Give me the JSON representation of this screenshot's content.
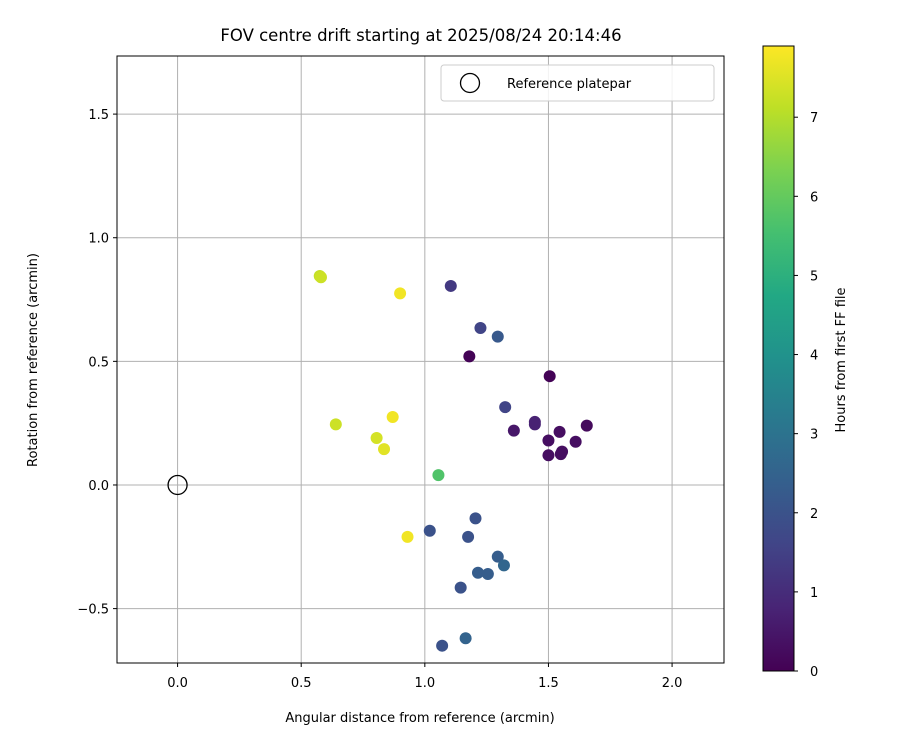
{
  "chart_data": {
    "type": "scatter",
    "title": "FOV centre drift starting at 2025/08/24 20:14:46",
    "xlabel": "Angular distance from reference (arcmin)",
    "ylabel": "Rotation from reference (arcmin)",
    "xlim": [
      -0.245,
      2.21
    ],
    "ylim": [
      -0.72,
      1.735
    ],
    "xticks": [
      0.0,
      0.5,
      1.0,
      1.5,
      2.0
    ],
    "xtick_labels": [
      "0.0",
      "0.5",
      "1.0",
      "1.5",
      "2.0"
    ],
    "yticks": [
      -0.5,
      0.0,
      0.5,
      1.0,
      1.5
    ],
    "ytick_labels": [
      "−0.5",
      "0.0",
      "0.5",
      "1.0",
      "1.5"
    ],
    "grid": true,
    "legend": {
      "location": "top-right",
      "label": "Reference platepar"
    },
    "reference_point": {
      "x": 0.0,
      "y": 0.0
    },
    "colorbar": {
      "label": "Hours from first FF file",
      "colormap": "viridis",
      "range": [
        0,
        7.9
      ],
      "ticks": [
        0,
        1,
        2,
        3,
        4,
        5,
        6,
        7
      ],
      "tick_labels": [
        "0",
        "1",
        "2",
        "3",
        "4",
        "5",
        "6",
        "7"
      ]
    },
    "points": [
      {
        "x": 1.18,
        "y": 0.52,
        "c": 0.05
      },
      {
        "x": 1.505,
        "y": 0.44,
        "c": 0.05
      },
      {
        "x": 1.655,
        "y": 0.24,
        "c": 0.2
      },
      {
        "x": 1.61,
        "y": 0.175,
        "c": 0.3
      },
      {
        "x": 1.545,
        "y": 0.215,
        "c": 0.3
      },
      {
        "x": 1.5,
        "y": 0.18,
        "c": 0.3
      },
      {
        "x": 1.555,
        "y": 0.135,
        "c": 0.3
      },
      {
        "x": 1.55,
        "y": 0.125,
        "c": 0.3
      },
      {
        "x": 1.5,
        "y": 0.12,
        "c": 0.3
      },
      {
        "x": 1.445,
        "y": 0.245,
        "c": 0.75
      },
      {
        "x": 1.445,
        "y": 0.255,
        "c": 0.75
      },
      {
        "x": 1.36,
        "y": 0.22,
        "c": 0.5
      },
      {
        "x": 1.105,
        "y": 0.805,
        "c": 1.3
      },
      {
        "x": 1.325,
        "y": 0.315,
        "c": 1.6
      },
      {
        "x": 1.225,
        "y": 0.635,
        "c": 1.6
      },
      {
        "x": 1.295,
        "y": 0.6,
        "c": 2.2
      },
      {
        "x": 1.02,
        "y": -0.185,
        "c": 2.0
      },
      {
        "x": 1.205,
        "y": -0.135,
        "c": 2.0
      },
      {
        "x": 1.175,
        "y": -0.21,
        "c": 2.0
      },
      {
        "x": 1.295,
        "y": -0.29,
        "c": 2.3
      },
      {
        "x": 1.32,
        "y": -0.325,
        "c": 2.6
      },
      {
        "x": 1.215,
        "y": -0.355,
        "c": 2.3
      },
      {
        "x": 1.255,
        "y": -0.36,
        "c": 2.3
      },
      {
        "x": 1.145,
        "y": -0.415,
        "c": 2.0
      },
      {
        "x": 1.165,
        "y": -0.62,
        "c": 2.5
      },
      {
        "x": 1.07,
        "y": -0.65,
        "c": 2.0
      },
      {
        "x": 1.055,
        "y": 0.04,
        "c": 5.7
      },
      {
        "x": 0.575,
        "y": 0.845,
        "c": 7.2
      },
      {
        "x": 0.58,
        "y": 0.84,
        "c": 7.3
      },
      {
        "x": 0.9,
        "y": 0.775,
        "c": 7.75
      },
      {
        "x": 0.64,
        "y": 0.245,
        "c": 7.3
      },
      {
        "x": 0.87,
        "y": 0.275,
        "c": 7.75
      },
      {
        "x": 0.805,
        "y": 0.19,
        "c": 7.4
      },
      {
        "x": 0.835,
        "y": 0.145,
        "c": 7.55
      },
      {
        "x": 0.93,
        "y": -0.21,
        "c": 7.75
      }
    ]
  }
}
